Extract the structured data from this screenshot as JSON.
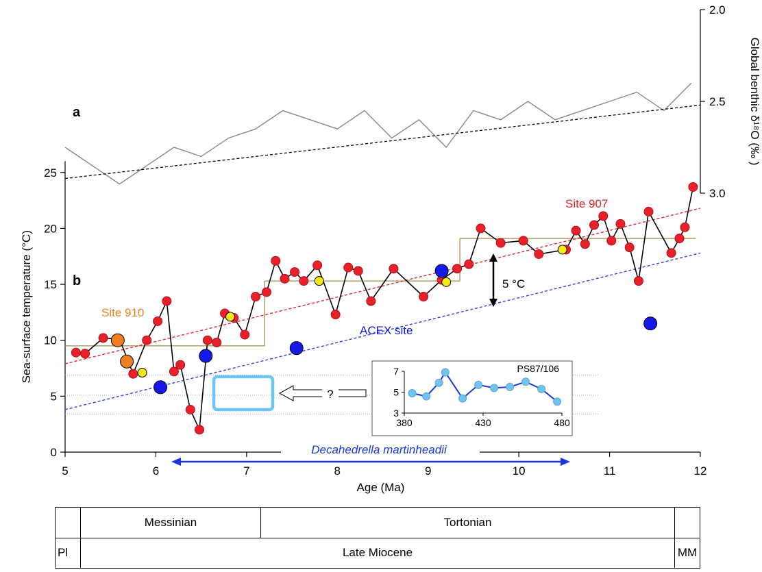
{
  "chart_data": [
    {
      "panel": "a",
      "type": "line",
      "ylabel": "Global benthic δ¹⁸O (‰ )",
      "y_inverted": true,
      "ylim": [
        2.0,
        3.0
      ],
      "yticks": [
        "2.0",
        "2.5",
        "3.0"
      ],
      "x": [
        5.0,
        5.3,
        5.6,
        5.9,
        6.2,
        6.5,
        6.8,
        7.1,
        7.4,
        7.7,
        8.0,
        8.3,
        8.6,
        8.9,
        9.2,
        9.5,
        9.8,
        10.1,
        10.4,
        10.7,
        11.0,
        11.3,
        11.6,
        11.9
      ],
      "y": [
        2.75,
        2.85,
        2.95,
        2.85,
        2.75,
        2.8,
        2.7,
        2.65,
        2.55,
        2.6,
        2.65,
        2.55,
        2.7,
        2.6,
        2.75,
        2.55,
        2.6,
        2.5,
        2.6,
        2.55,
        2.5,
        2.45,
        2.55,
        2.4
      ],
      "trend": {
        "x": [
          5,
          12
        ],
        "y": [
          2.92,
          2.52
        ]
      }
    },
    {
      "panel": "b",
      "type": "scatter",
      "xlabel": "Age (Ma)",
      "ylabel": "Sea-surface temperature (°C)",
      "xlim": [
        5,
        12
      ],
      "ylim": [
        0,
        28
      ],
      "xticks": [
        "5",
        "6",
        "7",
        "8",
        "9",
        "10",
        "11",
        "12"
      ],
      "yticks": [
        "0",
        "5",
        "10",
        "15",
        "20",
        "25"
      ],
      "series": [
        {
          "name": "Site 907",
          "color": "#e8202a",
          "x": [
            5.12,
            5.22,
            5.42,
            5.6,
            5.75,
            5.9,
            6.02,
            6.12,
            6.2,
            6.27,
            6.38,
            6.48,
            6.57,
            6.67,
            6.76,
            6.86,
            6.98,
            7.1,
            7.22,
            7.32,
            7.42,
            7.53,
            7.63,
            7.78,
            7.98,
            8.12,
            8.23,
            8.37,
            8.62,
            8.95,
            9.15,
            9.32,
            9.45,
            9.58,
            9.8,
            10.05,
            10.22,
            10.52,
            10.63,
            10.73,
            10.83,
            10.93,
            11.02,
            11.12,
            11.22,
            11.32,
            11.43,
            11.68,
            11.77,
            11.83,
            11.92
          ],
          "y": [
            8.9,
            8.8,
            10.2,
            10.1,
            7.0,
            10.0,
            11.7,
            13.5,
            7.2,
            7.8,
            3.8,
            2.0,
            10.0,
            9.8,
            12.4,
            12.0,
            10.5,
            13.9,
            14.3,
            17.1,
            15.5,
            16.1,
            15.3,
            16.7,
            12.3,
            16.5,
            16.2,
            13.5,
            16.4,
            13.9,
            15.4,
            16.4,
            16.8,
            20.0,
            18.7,
            18.9,
            17.7,
            18.1,
            19.8,
            18.6,
            20.3,
            21.1,
            18.9,
            20.4,
            18.3,
            15.3,
            21.5,
            17.8,
            19.1,
            20.1,
            23.7
          ]
        },
        {
          "name": "",
          "color": "#f5ea14",
          "x": [
            5.85,
            6.82,
            7.8,
            9.2,
            10.48
          ],
          "y": [
            7.1,
            12.1,
            15.3,
            15.2,
            18.1
          ]
        },
        {
          "name": "Site 910",
          "color": "#f07f1f",
          "x": [
            5.58,
            5.68
          ],
          "y": [
            10.0,
            8.1
          ]
        },
        {
          "name": "ACEX site",
          "color": "#1518e8",
          "x": [
            6.05,
            6.55,
            7.55,
            9.15,
            11.45
          ],
          "y": [
            5.8,
            8.6,
            9.3,
            16.2,
            11.5
          ]
        }
      ],
      "trendlines": [
        {
          "name": "Site 907",
          "color": "#e8202a",
          "x": [
            5,
            12
          ],
          "y": [
            7.9,
            21.8
          ]
        },
        {
          "name": "ACEX site",
          "color": "#2b3dee",
          "x": [
            5,
            12
          ],
          "y": [
            3.8,
            17.8
          ]
        }
      ],
      "step_means": [
        {
          "x": [
            5.0,
            7.2
          ],
          "y": 9.5
        },
        {
          "x": [
            7.2,
            9.35
          ],
          "y": 15.3
        },
        {
          "x": [
            9.35,
            11.95
          ],
          "y": 19.1
        }
      ],
      "annotations": {
        "delta_label": "5 °C",
        "question_mark": "?",
        "species": "Decahedrella martinheadii"
      }
    },
    {
      "panel": "inset",
      "type": "line",
      "title": "PS87/106",
      "color": "#1a36e0",
      "point_color": "#6ec6f0",
      "xlim": [
        380,
        480
      ],
      "ylim": [
        3,
        7
      ],
      "xticks": [
        "380",
        "430",
        "480"
      ],
      "yticks": [
        "3",
        "5",
        "7"
      ],
      "x": [
        385,
        394,
        402,
        406,
        417,
        427,
        437,
        447,
        457,
        467,
        477
      ],
      "y": [
        4.9,
        4.6,
        5.9,
        6.9,
        4.4,
        5.7,
        5.4,
        5.5,
        6.0,
        5.3,
        4.1
      ]
    }
  ],
  "stratigraphy": {
    "rows": [
      {
        "cells": [
          "",
          "Messinian",
          "Tortonian",
          ""
        ]
      },
      {
        "cells": [
          "Pl",
          "Late Miocene",
          "MM"
        ]
      }
    ]
  }
}
